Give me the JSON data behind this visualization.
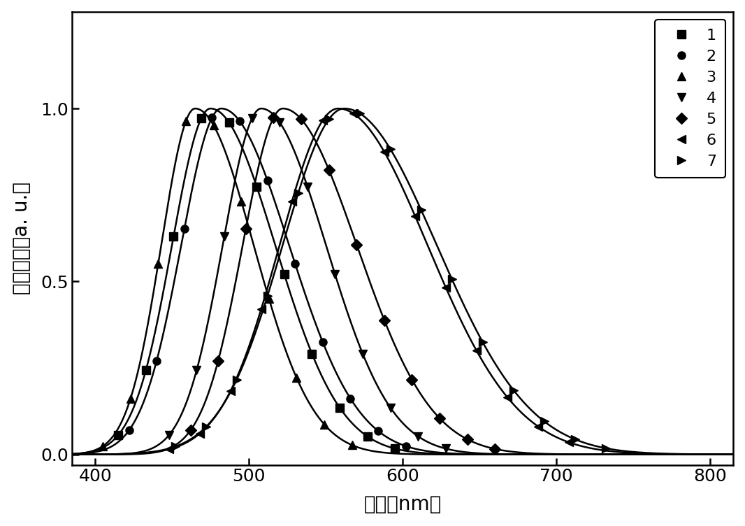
{
  "title": "",
  "xlabel": "波长（nm）",
  "ylabel": "发光强度（a. u.）",
  "xlim": [
    385,
    815
  ],
  "ylim": [
    -0.03,
    1.28
  ],
  "xticks": [
    400,
    500,
    600,
    700,
    800
  ],
  "yticks": [
    0.0,
    0.5,
    1.0
  ],
  "background_color": "#ffffff",
  "curve_params": [
    {
      "label": "1",
      "peak": 475,
      "sigma_l": 25,
      "sigma_r": 42,
      "marker": "s",
      "marker_step": 18
    },
    {
      "label": "2",
      "peak": 482,
      "sigma_l": 26,
      "sigma_r": 44,
      "marker": "o",
      "marker_step": 18
    },
    {
      "label": "3",
      "peak": 465,
      "sigma_l": 22,
      "sigma_r": 38,
      "marker": "^",
      "marker_step": 18
    },
    {
      "label": "4",
      "peak": 508,
      "sigma_l": 25,
      "sigma_r": 42,
      "marker": "v",
      "marker_step": 18
    },
    {
      "label": "5",
      "peak": 522,
      "sigma_l": 26,
      "sigma_r": 48,
      "marker": "D",
      "marker_step": 18
    },
    {
      "label": "6",
      "peak": 558,
      "sigma_l": 38,
      "sigma_r": 58,
      "marker": "<",
      "marker_step": 20
    },
    {
      "label": "7",
      "peak": 562,
      "sigma_l": 40,
      "sigma_r": 60,
      "marker": ">",
      "marker_step": 20
    }
  ],
  "linewidth": 1.8,
  "markersize": 8,
  "tick_fontsize": 18,
  "label_fontsize": 20,
  "legend_fontsize": 16
}
